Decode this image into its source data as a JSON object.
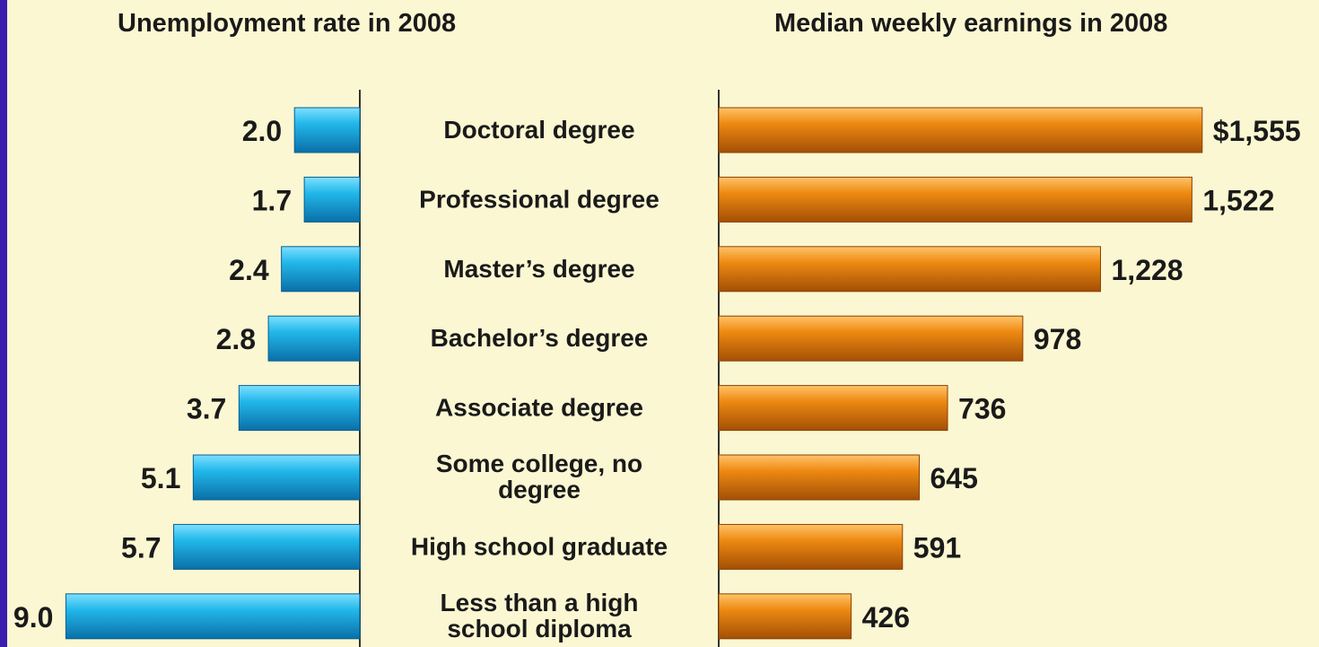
{
  "chart_data": [
    {
      "type": "bar",
      "orientation": "horizontal",
      "title": "Unemployment rate in 2008",
      "categories": [
        "Doctoral degree",
        "Professional degree",
        "Master’s degree",
        "Bachelor’s degree",
        "Associate degree",
        "Some college, no degree",
        "High school graduate",
        "Less than a high school diploma"
      ],
      "values": [
        2.0,
        1.7,
        2.4,
        2.8,
        3.7,
        5.1,
        5.7,
        9.0
      ],
      "value_labels": [
        "2.0",
        "1.7",
        "2.4",
        "2.8",
        "3.7",
        "5.1",
        "5.7",
        "9.0"
      ],
      "direction": "leftward",
      "color": "#1fb6e6"
    },
    {
      "type": "bar",
      "orientation": "horizontal",
      "title": "Median weekly earnings in 2008",
      "categories": [
        "Doctoral degree",
        "Professional degree",
        "Master’s degree",
        "Bachelor’s degree",
        "Associate degree",
        "Some college, no degree",
        "High school graduate",
        "Less than a high school diploma"
      ],
      "values": [
        1555,
        1522,
        1228,
        978,
        736,
        645,
        591,
        426
      ],
      "value_labels": [
        "$1,555",
        "1,522",
        "1,228",
        "978",
        "736",
        "645",
        "591",
        "426"
      ],
      "direction": "rightward",
      "color": "#e8870f"
    }
  ],
  "category_labels": [
    [
      "Doctoral degree"
    ],
    [
      "Professional degree"
    ],
    [
      "Master’s degree"
    ],
    [
      "Bachelor’s degree"
    ],
    [
      "Associate degree"
    ],
    [
      "Some college, no",
      "degree"
    ],
    [
      "High school graduate"
    ],
    [
      "Less than a high",
      "school diploma"
    ]
  ]
}
